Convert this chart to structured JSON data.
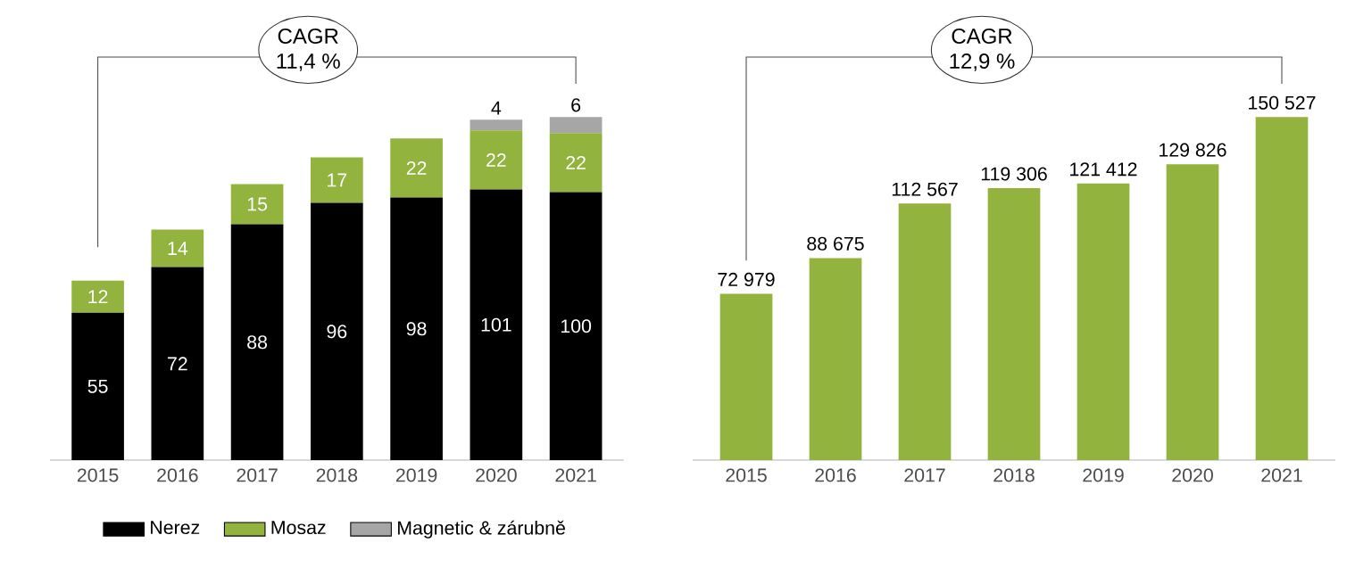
{
  "chart_data": [
    {
      "type": "bar",
      "stacked": true,
      "categories": [
        "2015",
        "2016",
        "2017",
        "2018",
        "2019",
        "2020",
        "2021"
      ],
      "series": [
        {
          "name": "Nerez",
          "color": "#000000",
          "values": [
            55,
            72,
            88,
            96,
            98,
            101,
            100
          ]
        },
        {
          "name": "Mosaz",
          "color": "#92b33e",
          "values": [
            12,
            14,
            15,
            17,
            22,
            22,
            22
          ]
        },
        {
          "name": "Magnetic & zárubně",
          "color": "#a6a6a6",
          "values": [
            null,
            null,
            null,
            null,
            null,
            4,
            6
          ]
        }
      ],
      "data_labels": true,
      "legend": "bottom",
      "annotations": [
        "CAGR",
        "11,4 %"
      ]
    },
    {
      "type": "bar",
      "categories": [
        "2015",
        "2016",
        "2017",
        "2018",
        "2019",
        "2020",
        "2021"
      ],
      "color": "#92b33e",
      "values": [
        72979,
        88675,
        112567,
        119306,
        121412,
        129826,
        150527
      ],
      "value_labels": [
        "72 979",
        "88 675",
        "112 567",
        "119 306",
        "121 412",
        "129 826",
        "150 527"
      ],
      "annotations": [
        "CAGR",
        "12,9 %"
      ]
    }
  ]
}
